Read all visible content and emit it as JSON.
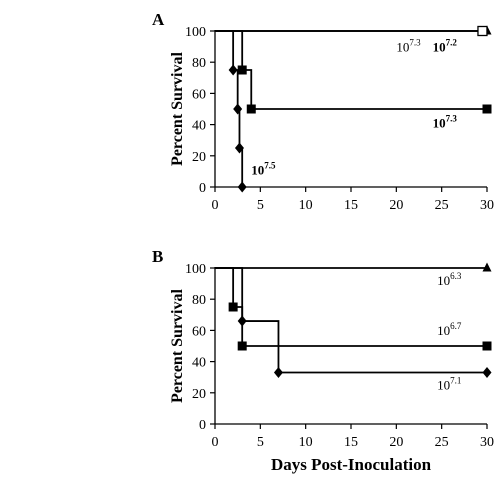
{
  "chart_data": [
    {
      "type": "line",
      "panel_label": "A",
      "ylabel": "Percent Survival",
      "xlabel": "",
      "xlim": [
        0,
        30
      ],
      "ylim": [
        0,
        100
      ],
      "xticks": [
        0,
        5,
        10,
        15,
        20,
        25,
        30
      ],
      "yticks": [
        0,
        20,
        40,
        60,
        80,
        100
      ],
      "series": [
        {
          "marker": "triangle",
          "x": [
            0,
            30
          ],
          "y": [
            100,
            100
          ],
          "points": [
            [
              30,
              100
            ]
          ]
        },
        {
          "marker": "open-square",
          "x": [
            0,
            30
          ],
          "y": [
            100,
            100
          ],
          "points": [
            [
              29.5,
              100
            ]
          ]
        },
        {
          "marker": "square",
          "x": [
            0,
            3,
            3,
            4,
            4,
            30
          ],
          "y": [
            100,
            100,
            75,
            75,
            50,
            50
          ],
          "points": [
            [
              3,
              75
            ],
            [
              4,
              50
            ],
            [
              30,
              50
            ]
          ]
        },
        {
          "marker": "diamond",
          "x": [
            0,
            2,
            2,
            2.5,
            2.5,
            2.7,
            2.7,
            3,
            3
          ],
          "y": [
            100,
            100,
            75,
            75,
            50,
            50,
            25,
            25,
            0
          ],
          "points": [
            [
              2,
              75
            ],
            [
              2.5,
              50
            ],
            [
              2.7,
              25
            ],
            [
              3,
              0
            ]
          ]
        }
      ],
      "annotations": [
        {
          "base": "10",
          "exp": "7.3",
          "bold": false,
          "x": 20,
          "y": 87
        },
        {
          "base": "10",
          "exp": "7.2",
          "bold": true,
          "x": 24,
          "y": 87
        },
        {
          "base": "10",
          "exp": "7.3",
          "bold": true,
          "x": 24,
          "y": 38
        },
        {
          "base": "10",
          "exp": "7.5",
          "bold": true,
          "x": 4,
          "y": 8
        }
      ]
    },
    {
      "type": "line",
      "panel_label": "B",
      "ylabel": "Percent Survival",
      "xlabel": "Days Post-Inoculation",
      "xlim": [
        0,
        30
      ],
      "ylim": [
        0,
        100
      ],
      "xticks": [
        0,
        5,
        10,
        15,
        20,
        25,
        30
      ],
      "yticks": [
        0,
        20,
        40,
        60,
        80,
        100
      ],
      "series": [
        {
          "marker": "triangle",
          "x": [
            0,
            30
          ],
          "y": [
            100,
            100
          ],
          "points": [
            [
              30,
              100
            ]
          ]
        },
        {
          "marker": "square",
          "x": [
            0,
            2,
            2,
            3,
            3,
            30
          ],
          "y": [
            100,
            100,
            75,
            75,
            50,
            50
          ],
          "points": [
            [
              2,
              75
            ],
            [
              3,
              50
            ],
            [
              30,
              50
            ]
          ]
        },
        {
          "marker": "diamond",
          "x": [
            0,
            3,
            3,
            7,
            7,
            30
          ],
          "y": [
            100,
            100,
            66,
            66,
            33,
            33
          ],
          "points": [
            [
              3,
              66
            ],
            [
              7,
              33
            ],
            [
              30,
              33
            ]
          ]
        }
      ],
      "annotations": [
        {
          "base": "10",
          "exp": "6.3",
          "bold": false,
          "x": 24.5,
          "y": 89
        },
        {
          "base": "10",
          "exp": "6.7",
          "bold": false,
          "x": 24.5,
          "y": 57
        },
        {
          "base": "10",
          "exp": "7.1",
          "bold": false,
          "x": 24.5,
          "y": 22
        }
      ]
    }
  ]
}
